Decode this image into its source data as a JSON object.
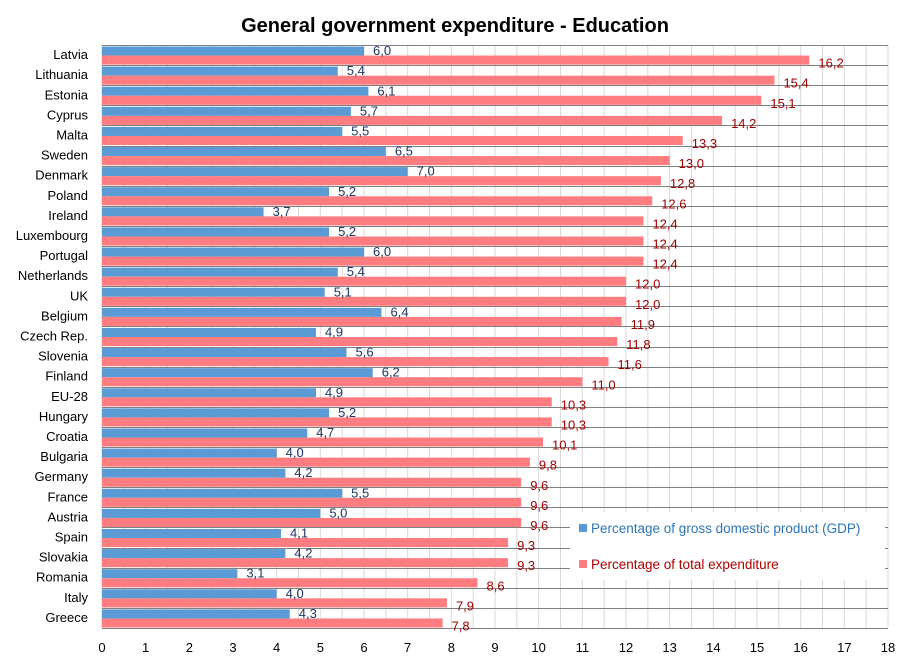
{
  "chart_data": {
    "type": "bar",
    "orientation": "horizontal",
    "title": "General government expenditure - Education",
    "xlabel": "",
    "ylabel": "",
    "xlim": [
      0,
      18
    ],
    "xticks": [
      "0",
      "1",
      "2",
      "3",
      "4",
      "5",
      "6",
      "7",
      "8",
      "9",
      "10",
      "11",
      "12",
      "13",
      "14",
      "15",
      "16",
      "17",
      "18"
    ],
    "grid": true,
    "legend_position": "bottom-right",
    "categories": [
      "Latvia",
      "Lithuania",
      "Estonia",
      "Cyprus",
      "Malta",
      "Sweden",
      "Denmark",
      "Poland",
      "Ireland",
      "Luxembourg",
      "Portugal",
      "Netherlands",
      "UK",
      "Belgium",
      "Czech Rep.",
      "Slovenia",
      "Finland",
      "EU-28",
      "Hungary",
      "Croatia",
      "Bulgaria",
      "Germany",
      "France",
      "Austria",
      "Spain",
      "Slovakia",
      "Romania",
      "Italy",
      "Greece"
    ],
    "series": [
      {
        "name": "Percentage of gross domestic product (GDP)",
        "color": "#5b9bd5",
        "label_color": "#1f3864",
        "values": [
          6.0,
          5.4,
          6.1,
          5.7,
          5.5,
          6.5,
          7.0,
          5.2,
          3.7,
          5.2,
          6.0,
          5.4,
          5.1,
          6.4,
          4.9,
          5.6,
          6.2,
          4.9,
          5.2,
          4.7,
          4.0,
          4.2,
          5.5,
          5.0,
          4.1,
          4.2,
          3.1,
          4.0,
          4.3
        ]
      },
      {
        "name": "Percentage of total expenditure",
        "color": "#ff7c80",
        "label_color": "#a00000",
        "values": [
          16.2,
          15.4,
          15.1,
          14.2,
          13.3,
          13.0,
          12.8,
          12.6,
          12.4,
          12.4,
          12.4,
          12.0,
          12.0,
          11.9,
          11.8,
          11.6,
          11.0,
          10.3,
          10.3,
          10.1,
          9.8,
          9.6,
          9.6,
          9.6,
          9.3,
          9.3,
          8.6,
          7.9,
          7.8
        ]
      }
    ]
  }
}
